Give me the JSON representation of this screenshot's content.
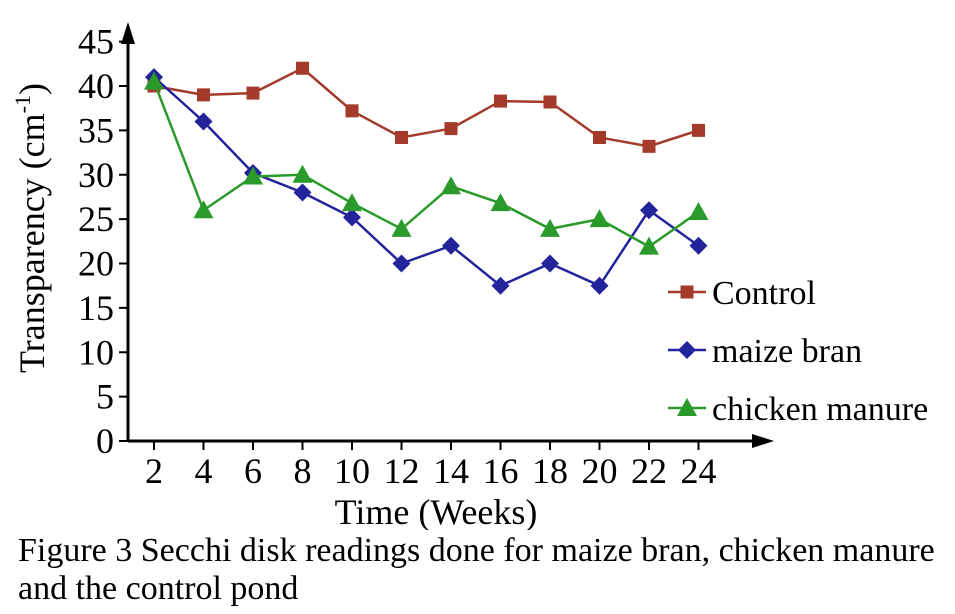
{
  "caption": "Figure 3 Secchi disk readings done for maize bran, chicken manure and the control pond",
  "chart_data": {
    "type": "line",
    "title": "",
    "xlabel": "Time (Weeks)",
    "ylabel_main": "Transparency (cm",
    "ylabel_sup": "-1",
    "ylabel_close": ")",
    "x": [
      2,
      4,
      6,
      8,
      10,
      12,
      14,
      16,
      18,
      20,
      22,
      24
    ],
    "x_tick_labels": [
      "2",
      "4",
      "6",
      "8",
      "10",
      "12",
      "14",
      "16",
      "18",
      "20",
      "22",
      "24"
    ],
    "y_ticks": [
      0,
      5,
      10,
      15,
      20,
      25,
      30,
      35,
      40,
      45
    ],
    "y_tick_labels": [
      "0",
      "5",
      "10",
      "15",
      "20",
      "25",
      "30",
      "35",
      "40",
      "45"
    ],
    "ylim": [
      0,
      45
    ],
    "grid": false,
    "legend_position": "right",
    "series": [
      {
        "name": "Control",
        "marker": "square",
        "color": "#A33A2A",
        "values": [
          40,
          39,
          39.2,
          42,
          37.2,
          34.2,
          35.2,
          38.3,
          38.2,
          34.2,
          33.2,
          35
        ]
      },
      {
        "name": "maize bran",
        "marker": "diamond",
        "color": "#23239B",
        "values": [
          41,
          36,
          30.2,
          28,
          25.2,
          20,
          22,
          17.5,
          20,
          17.5,
          26,
          22
        ]
      },
      {
        "name": "chicken manure",
        "marker": "triangle",
        "color": "#2A9A2A",
        "values": [
          40.5,
          26,
          29.8,
          30,
          26.8,
          23.9,
          28.7,
          26.8,
          23.9,
          25,
          21.9,
          25.8
        ]
      }
    ]
  }
}
